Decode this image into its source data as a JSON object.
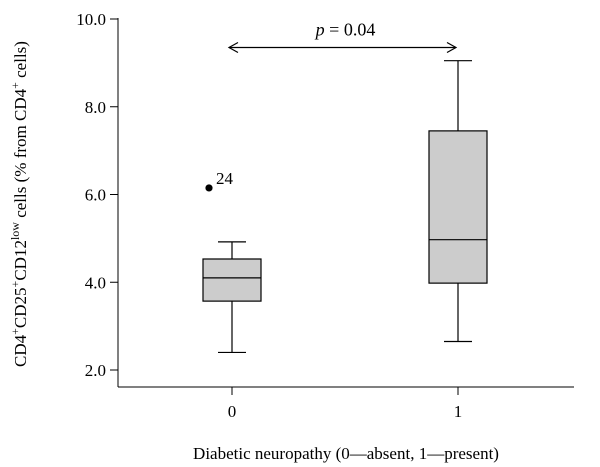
{
  "chart_data": {
    "type": "box",
    "xlabel": "Diabetic neuropathy (0—absent, 1—present)",
    "ylabel_parts": [
      {
        "t": "CD4",
        "sup": false
      },
      {
        "t": "+",
        "sup": true
      },
      {
        "t": "CD25",
        "sup": false
      },
      {
        "t": "+",
        "sup": true
      },
      {
        "t": "CD12",
        "sup": false
      },
      {
        "t": "low",
        "sup": true
      },
      {
        "t": " cells (% from CD4",
        "sup": false
      },
      {
        "t": "+",
        "sup": true
      },
      {
        "t": " cells)",
        "sup": false
      }
    ],
    "ylim": [
      2.0,
      10.0
    ],
    "yticks": [
      2.0,
      4.0,
      6.0,
      8.0,
      10.0
    ],
    "ytick_labels": [
      "2.0",
      "4.0",
      "6.0",
      "8.0",
      "10.0"
    ],
    "categories": [
      "0",
      "1"
    ],
    "boxes": [
      {
        "category": "0",
        "min": 2.4,
        "q1": 3.57,
        "median": 4.1,
        "q3": 4.53,
        "max": 4.92,
        "outliers": [
          {
            "value": 6.15,
            "label": "24"
          }
        ]
      },
      {
        "category": "1",
        "min": 2.65,
        "q1": 3.98,
        "median": 4.97,
        "q3": 7.45,
        "max": 9.05,
        "outliers": []
      }
    ],
    "annotation": {
      "p_italic": "p",
      "p_rest": " = 0.04",
      "between": [
        "0",
        "1"
      ],
      "y": 9.35
    }
  }
}
